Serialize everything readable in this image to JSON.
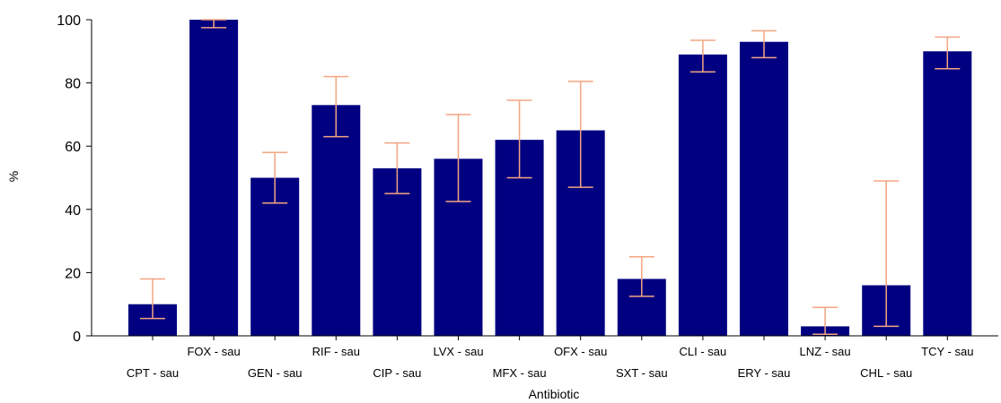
{
  "chart_data": {
    "type": "bar",
    "title": "",
    "xlabel": "Antibiotic",
    "ylabel": "%",
    "ylim": [
      0,
      100
    ],
    "yticks": [
      0,
      20,
      40,
      60,
      80,
      100
    ],
    "grid": false,
    "categories": [
      "CPT - sau",
      "FOX - sau",
      "GEN - sau",
      "RIF - sau",
      "CIP - sau",
      "LVX - sau",
      "MFX - sau",
      "OFX - sau",
      "SXT - sau",
      "CLI - sau",
      "ERY - sau",
      "LNZ - sau",
      "CHL - sau",
      "TCY - sau"
    ],
    "values": [
      10,
      100,
      50,
      73,
      53,
      56,
      62,
      65,
      18,
      89,
      93,
      3,
      16,
      90
    ],
    "error_low": [
      5.5,
      97.5,
      42,
      63,
      45,
      42.5,
      50,
      47,
      12.5,
      83.5,
      88,
      0.5,
      3,
      84.5
    ],
    "error_high": [
      18,
      100,
      58,
      82,
      61,
      70,
      74.5,
      80.5,
      25,
      93.5,
      96.5,
      9,
      49,
      94.5
    ],
    "colors": {
      "bar": "#000080",
      "error": "#f4a582",
      "axis": "#000000"
    }
  }
}
